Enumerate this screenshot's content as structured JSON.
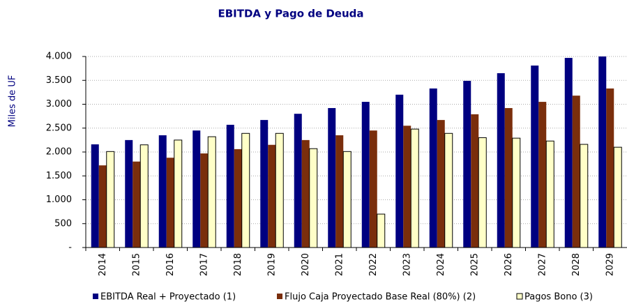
{
  "chart_data": {
    "type": "bar",
    "title": "EBITDA y Pago de Deuda",
    "y_label": "Miles de UF",
    "categories": [
      "2014",
      "2015",
      "2016",
      "2017",
      "2018",
      "2019",
      "2020",
      "2021",
      "2022",
      "2023",
      "2024",
      "2025",
      "2026",
      "2027",
      "2028",
      "2029"
    ],
    "series": [
      {
        "name": "EBITDA Real + Proyectado (1)",
        "color": "#000080",
        "values": [
          2160,
          2250,
          2350,
          2450,
          2570,
          2670,
          2800,
          2920,
          3050,
          3200,
          3330,
          3490,
          3650,
          3810,
          3970,
          4000
        ]
      },
      {
        "name": "Flujo Caja Proyectado Base Real (80%) (2)",
        "color": "#7a2e0c",
        "values": [
          1720,
          1800,
          1880,
          1970,
          2060,
          2150,
          2250,
          2350,
          2450,
          2550,
          2670,
          2790,
          2920,
          3050,
          3180,
          3330
        ]
      },
      {
        "name": "Pagos Bono (3)",
        "color": "#ffffc8",
        "values": [
          2010,
          2150,
          2250,
          2320,
          2390,
          2390,
          2070,
          2010,
          700,
          2480,
          2390,
          2300,
          2290,
          2230,
          2160,
          2100
        ]
      }
    ],
    "ylim": [
      0,
      4000
    ],
    "yticks": [
      {
        "value": 0,
        "label": "-"
      },
      500,
      {
        "value": 1000,
        "label": "1.000"
      },
      {
        "value": 1500,
        "label": "1.500"
      },
      {
        "value": 2000,
        "label": "2.000"
      },
      {
        "value": 2500,
        "label": "2.500"
      },
      {
        "value": 3000,
        "label": "3.000"
      },
      {
        "value": 3500,
        "label": "3.500"
      },
      {
        "value": 4000,
        "label": "4.000"
      }
    ],
    "grid": true,
    "legend": "bottom"
  }
}
